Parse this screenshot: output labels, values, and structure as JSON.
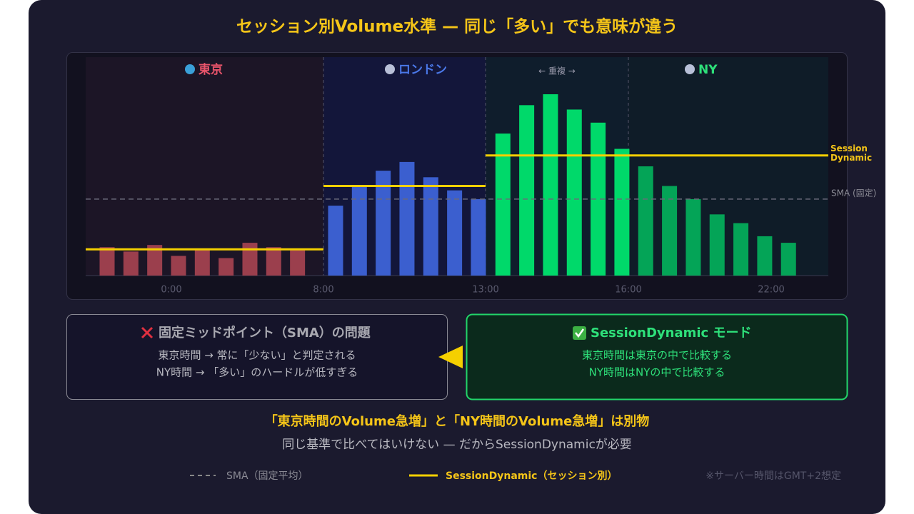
{
  "title": "セッション別Volume水準 — 同じ「多い」でも意味が違う",
  "chart_data": {
    "type": "bar",
    "categories": [
      null,
      null,
      null,
      null,
      null,
      null,
      null,
      null,
      null,
      null,
      null,
      null,
      null,
      null,
      null,
      null,
      null,
      null,
      null,
      null,
      null,
      null,
      null,
      null,
      null,
      null,
      null,
      null,
      null
    ],
    "time_labels": [
      "0:00",
      "8:00",
      "13:00",
      "16:00",
      "22:00"
    ],
    "annotation": "← 重複 →",
    "series": [
      {
        "name": "東京",
        "color": "#9b3f4d",
        "values": [
          13,
          11,
          14,
          9,
          12,
          8,
          15,
          13,
          12,
          null,
          null,
          null,
          null,
          null,
          null,
          null,
          null,
          null,
          null,
          null,
          null,
          null,
          null,
          null,
          null,
          null,
          null,
          null,
          null
        ]
      },
      {
        "name": "ロンドン",
        "color": "#3b5fcf",
        "values": [
          null,
          null,
          null,
          null,
          null,
          null,
          null,
          null,
          null,
          32,
          41,
          48,
          52,
          45,
          39,
          35,
          null,
          null,
          null,
          null,
          null,
          null,
          null,
          null,
          null,
          null,
          null,
          null,
          null
        ]
      },
      {
        "name": "NY",
        "color": "#00d96a",
        "values": [
          null,
          null,
          null,
          null,
          null,
          null,
          null,
          null,
          null,
          null,
          null,
          null,
          null,
          null,
          null,
          null,
          65,
          78,
          83,
          76,
          70,
          58,
          50,
          41,
          35,
          28,
          24,
          18,
          15
        ]
      }
    ],
    "session_levels": [
      12,
      41,
      55
    ],
    "session_level_label": "Session Dynamic",
    "sma": 35,
    "sma_label": "SMA (固定)",
    "ylim": [
      0,
      100
    ],
    "grid": false
  },
  "panels": [
    {
      "title": "固定ミッドポイント（SMA）の問題",
      "lines": [
        "東京時間 → 常に「少ない」と判定される",
        "NY時間 → 「多い」のハードルが低すぎる"
      ]
    },
    {
      "title": "SessionDynamic モード",
      "lines": [
        "東京時間は東京の中で比較する",
        "NY時間はNYの中で比較する"
      ]
    }
  ],
  "conclusion": {
    "headline": "「東京時間のVolume急増」と「NY時間のVolume急増」は別物",
    "subline": "同じ基準で比べてはいけない — だからSessionDynamicが必要"
  },
  "legend": {
    "items": [
      "SMA（固定平均）",
      "SessionDynamic（セッション別）"
    ],
    "note": "※サーバー時間はGMT+2想定"
  }
}
